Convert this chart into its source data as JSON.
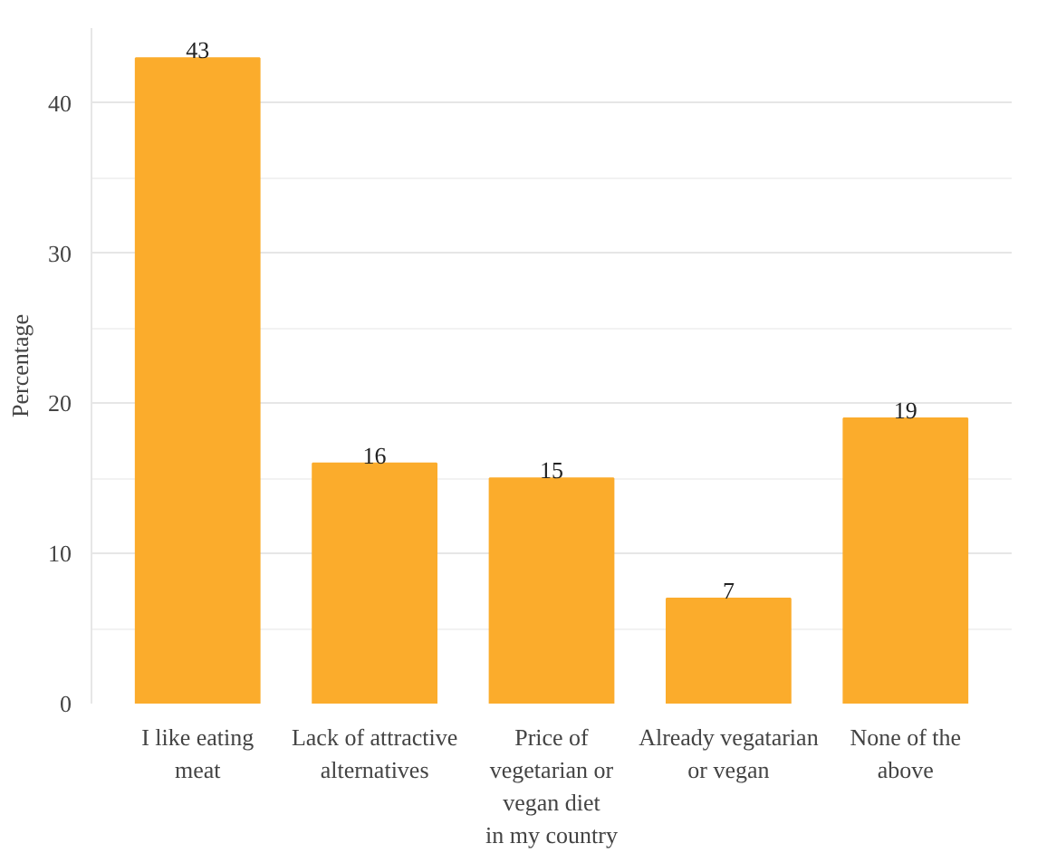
{
  "chart_data": {
    "type": "bar",
    "categories": [
      "I like eating\nmeat",
      "Lack of attractive\nalternatives",
      "Price of\nvegetarian or\nvegan diet\nin my country",
      "Already vegatarian\nor vegan",
      "None of the\nabove"
    ],
    "values": [
      43,
      16,
      15,
      7,
      19
    ],
    "color": "#fbac2c",
    "ylabel": "Percentage",
    "ylim": [
      0,
      45
    ],
    "yticks": [
      0,
      10,
      20,
      30,
      40
    ],
    "grid": "y",
    "data_labels": true
  }
}
